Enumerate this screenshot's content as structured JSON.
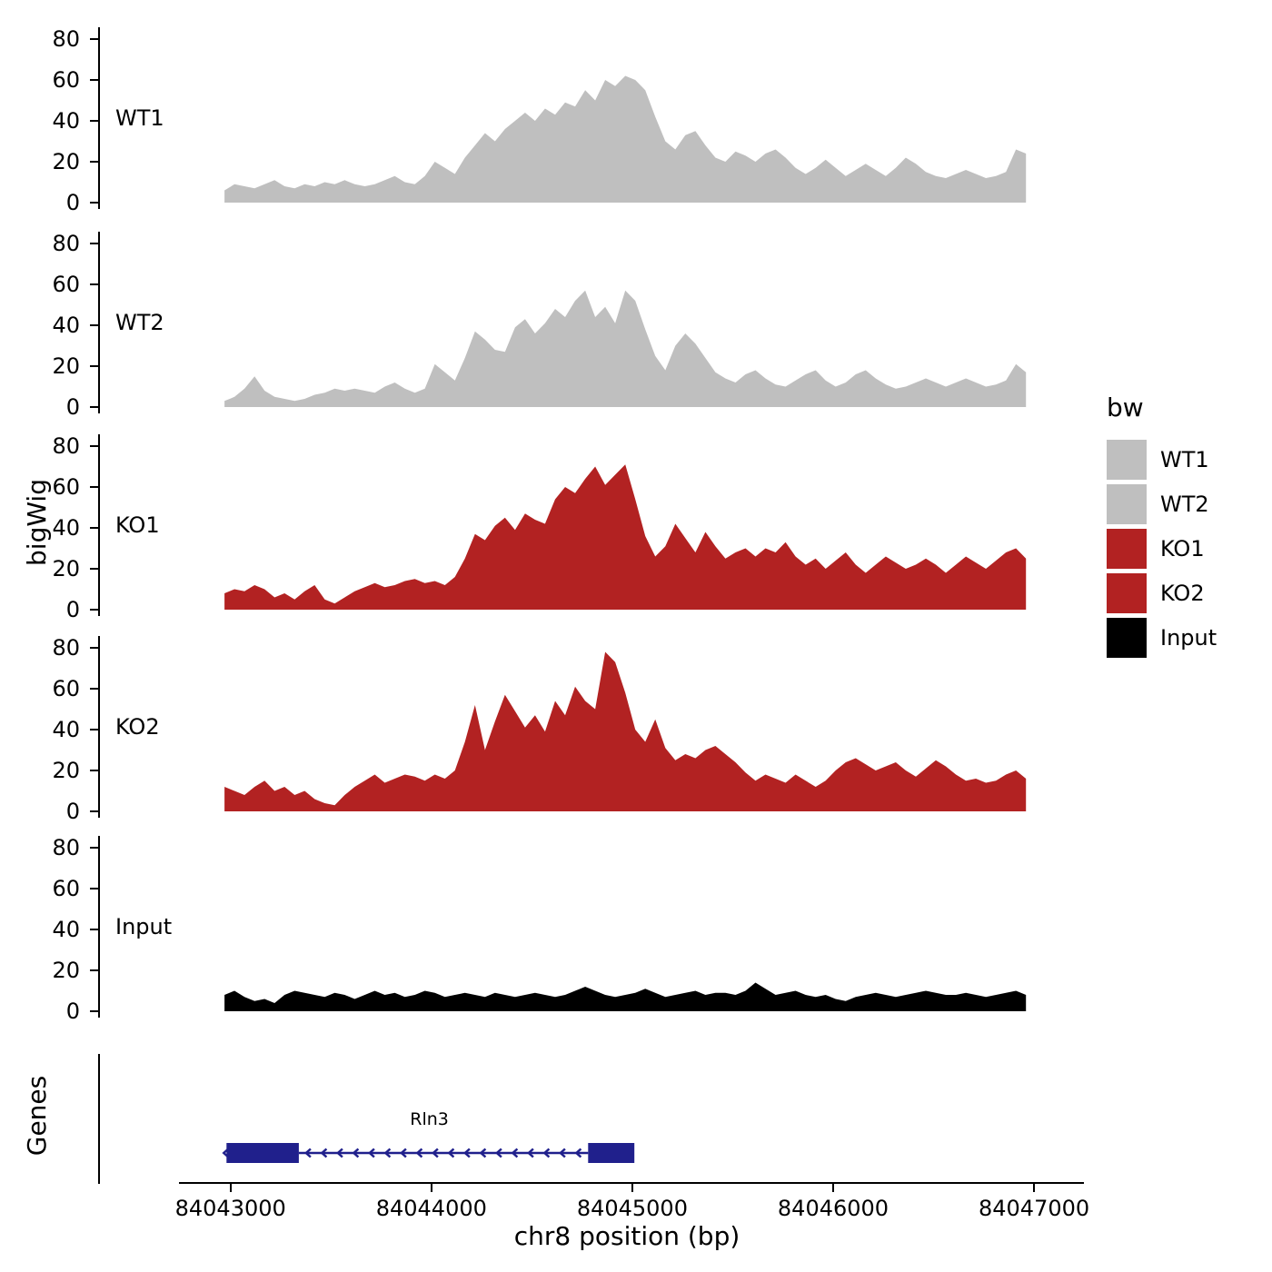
{
  "chart_data": {
    "type": "area",
    "title": "",
    "xlabel": "chr8 position (bp)",
    "ylabel": "bigWig",
    "x_domain": [
      84042350,
      84047280
    ],
    "x_ticks": [
      84043000,
      84044000,
      84045000,
      84046000,
      84047000
    ],
    "x_tick_labels": [
      "84043000",
      "84044000",
      "84045000",
      "84046000",
      "84047000"
    ],
    "y_ticks": [
      0,
      20,
      40,
      60,
      80
    ],
    "y_domain": [
      0,
      86
    ],
    "grid": false,
    "legend_position": "right",
    "tracks": [
      {
        "name": "WT1",
        "color": "#bfbfbf",
        "x_start": 84042970,
        "x_end": 84046960,
        "values": [
          6,
          9,
          8,
          7,
          9,
          11,
          8,
          7,
          9,
          8,
          10,
          9,
          11,
          9,
          8,
          9,
          11,
          13,
          10,
          9,
          13,
          20,
          17,
          14,
          22,
          28,
          34,
          30,
          36,
          40,
          44,
          40,
          46,
          43,
          49,
          47,
          55,
          50,
          60,
          57,
          62,
          60,
          55,
          42,
          30,
          26,
          33,
          35,
          28,
          22,
          20,
          25,
          23,
          20,
          24,
          26,
          22,
          17,
          14,
          17,
          21,
          17,
          13,
          16,
          19,
          16,
          13,
          17,
          22,
          19,
          15,
          13,
          12,
          14,
          16,
          14,
          12,
          13,
          15,
          26,
          24
        ]
      },
      {
        "name": "WT2",
        "color": "#bfbfbf",
        "x_start": 84042970,
        "x_end": 84046960,
        "values": [
          3,
          5,
          9,
          15,
          8,
          5,
          4,
          3,
          4,
          6,
          7,
          9,
          8,
          9,
          8,
          7,
          10,
          12,
          9,
          7,
          9,
          21,
          17,
          13,
          24,
          37,
          33,
          28,
          27,
          39,
          43,
          36,
          41,
          48,
          44,
          52,
          57,
          44,
          49,
          41,
          57,
          52,
          38,
          25,
          18,
          30,
          36,
          31,
          24,
          17,
          14,
          12,
          16,
          18,
          14,
          11,
          10,
          13,
          16,
          18,
          13,
          10,
          12,
          16,
          18,
          14,
          11,
          9,
          10,
          12,
          14,
          12,
          10,
          12,
          14,
          12,
          10,
          11,
          13,
          21,
          17
        ]
      },
      {
        "name": "KO1",
        "color": "#b22222",
        "x_start": 84042970,
        "x_end": 84046960,
        "values": [
          8,
          10,
          9,
          12,
          10,
          6,
          8,
          5,
          9,
          12,
          5,
          3,
          6,
          9,
          11,
          13,
          11,
          12,
          14,
          15,
          13,
          14,
          12,
          16,
          25,
          37,
          34,
          41,
          45,
          39,
          47,
          44,
          42,
          54,
          60,
          57,
          64,
          70,
          61,
          66,
          71,
          54,
          36,
          26,
          31,
          42,
          35,
          28,
          38,
          31,
          25,
          28,
          30,
          26,
          30,
          28,
          33,
          26,
          22,
          25,
          20,
          24,
          28,
          22,
          18,
          22,
          26,
          23,
          20,
          22,
          25,
          22,
          18,
          22,
          26,
          23,
          20,
          24,
          28,
          30,
          25
        ]
      },
      {
        "name": "KO2",
        "color": "#b22222",
        "x_start": 84042970,
        "x_end": 84046960,
        "values": [
          12,
          10,
          8,
          12,
          15,
          10,
          12,
          8,
          10,
          6,
          4,
          3,
          8,
          12,
          15,
          18,
          14,
          16,
          18,
          17,
          15,
          18,
          16,
          20,
          34,
          52,
          30,
          44,
          57,
          49,
          41,
          47,
          39,
          54,
          47,
          61,
          54,
          50,
          78,
          73,
          58,
          40,
          34,
          45,
          31,
          25,
          28,
          26,
          30,
          32,
          28,
          24,
          19,
          15,
          18,
          16,
          14,
          18,
          15,
          12,
          15,
          20,
          24,
          26,
          23,
          20,
          22,
          24,
          20,
          17,
          21,
          25,
          22,
          18,
          15,
          16,
          14,
          15,
          18,
          20,
          16
        ]
      },
      {
        "name": "Input",
        "color": "#000000",
        "x_start": 84042970,
        "x_end": 84046960,
        "values": [
          8,
          10,
          7,
          5,
          6,
          4,
          8,
          10,
          9,
          8,
          7,
          9,
          8,
          6,
          8,
          10,
          8,
          9,
          7,
          8,
          10,
          9,
          7,
          8,
          9,
          8,
          7,
          9,
          8,
          7,
          8,
          9,
          8,
          7,
          8,
          10,
          12,
          10,
          8,
          7,
          8,
          9,
          11,
          9,
          7,
          8,
          9,
          10,
          8,
          9,
          9,
          8,
          10,
          14,
          11,
          8,
          9,
          10,
          8,
          7,
          8,
          6,
          5,
          7,
          8,
          9,
          8,
          7,
          8,
          9,
          10,
          9,
          8,
          8,
          9,
          8,
          7,
          8,
          9,
          10,
          8
        ]
      }
    ],
    "genes": {
      "panel_label": "Genes",
      "gene": {
        "name": "Rln3",
        "color": "#20208c",
        "strand": "-",
        "start": 84042980,
        "end": 84045010,
        "label_pos": 84043990,
        "exons": [
          [
            84042980,
            84043340
          ],
          [
            84044780,
            84045010
          ]
        ]
      }
    },
    "legend": {
      "title": "bw",
      "entries": [
        {
          "label": "WT1",
          "color": "#bfbfbf"
        },
        {
          "label": "WT2",
          "color": "#bfbfbf"
        },
        {
          "label": "KO1",
          "color": "#b22222"
        },
        {
          "label": "KO2",
          "color": "#b22222"
        },
        {
          "label": "Input",
          "color": "#000000"
        }
      ]
    }
  }
}
